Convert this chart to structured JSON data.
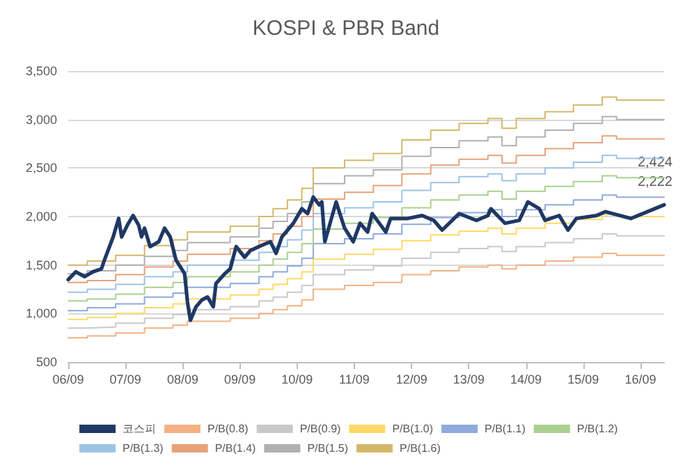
{
  "chart_data": {
    "type": "step",
    "title": "KOSPI & PBR Band",
    "x": [
      "2006-09-01",
      "2007-01-01",
      "2007-07-01",
      "2008-01-01",
      "2008-07-01",
      "2008-10-01",
      "2009-01-01",
      "2009-07-01",
      "2010-01-01",
      "2010-04-01",
      "2010-07-01",
      "2010-10-01",
      "2010-12-13",
      "2011-04-01",
      "2011-07-01",
      "2012-01-01",
      "2012-07-01",
      "2013-01-01",
      "2013-07-01",
      "2014-01-01",
      "2014-04-01",
      "2014-07-01",
      "2015-01-01",
      "2015-07-01",
      "2016-01-01",
      "2016-04-01",
      "2017-01-30"
    ],
    "series": [
      {
        "name": "코스피",
        "type": "line",
        "color": "#1f3864",
        "x": [
          "2006-09-01",
          "2006-10-20",
          "2006-12-15",
          "2007-02-05",
          "2007-04-01",
          "2007-04-20",
          "2007-06-15",
          "2007-07-20",
          "2007-08-08",
          "2007-09-13",
          "2007-10-20",
          "2007-11-25",
          "2007-12-13",
          "2008-01-01",
          "2008-02-06",
          "2008-04-01",
          "2008-05-08",
          "2008-06-13",
          "2008-07-20",
          "2008-08-25",
          "2008-09-13",
          "2008-10-01",
          "2008-10-20",
          "2008-11-25",
          "2009-01-01",
          "2009-02-06",
          "2009-03-15",
          "2009-04-01",
          "2009-05-27",
          "2009-07-01",
          "2009-08-08",
          "2009-10-01",
          "2009-11-07",
          "2010-01-01",
          "2010-03-15",
          "2010-04-20",
          "2010-05-27",
          "2010-08-08",
          "2010-10-01",
          "2010-11-07",
          "2010-12-13",
          "2011-01-20",
          "2011-02-06",
          "2011-02-25",
          "2011-05-08",
          "2011-07-01",
          "2011-08-25",
          "2011-10-08",
          "2011-11-25",
          "2011-12-24",
          "2012-03-20",
          "2012-04-20",
          "2012-08-08",
          "2012-11-07",
          "2013-01-20",
          "2013-03-15",
          "2013-07-01",
          "2013-10-20",
          "2014-01-01",
          "2014-01-20",
          "2014-04-20",
          "2014-07-20",
          "2014-09-13",
          "2014-11-25",
          "2015-01-01",
          "2015-04-01",
          "2015-05-27",
          "2015-07-20",
          "2015-11-25",
          "2016-01-20",
          "2016-07-01",
          "2017-01-30"
        ],
        "values": [
          1350,
          1430,
          1380,
          1430,
          1460,
          1550,
          1790,
          1980,
          1790,
          1910,
          2010,
          1910,
          1790,
          1880,
          1690,
          1740,
          1880,
          1790,
          1550,
          1460,
          1410,
          1120,
          930,
          1070,
          1140,
          1170,
          1070,
          1310,
          1410,
          1460,
          1690,
          1580,
          1650,
          1690,
          1740,
          1620,
          1790,
          1930,
          2080,
          2030,
          2200,
          2120,
          2150,
          1740,
          2150,
          1880,
          1740,
          1930,
          1840,
          2030,
          1840,
          1980,
          1980,
          2010,
          1960,
          1860,
          2030,
          1960,
          2010,
          2080,
          1930,
          1960,
          2150,
          2080,
          1960,
          2010,
          1860,
          1980,
          2010,
          2050,
          1980,
          2120
        ]
      },
      {
        "name": "P/B(0.8)",
        "color": "#f4b183",
        "values": [
          750,
          770,
          800,
          850,
          880,
          920,
          920,
          950,
          1000,
          1040,
          1080,
          1140,
          1250,
          1250,
          1290,
          1320,
          1400,
          1440,
          1480,
          1500,
          1460,
          1500,
          1540,
          1580,
          1620,
          1600,
          1600
        ]
      },
      {
        "name": "P/B(0.9)",
        "color": "#c9c9c9",
        "values": [
          850,
          860,
          900,
          950,
          990,
          1040,
          1040,
          1070,
          1130,
          1170,
          1220,
          1290,
          1400,
          1400,
          1450,
          1490,
          1570,
          1630,
          1670,
          1690,
          1640,
          1690,
          1730,
          1770,
          1820,
          1800,
          1800
        ]
      },
      {
        "name": "P/B(1.0)",
        "color": "#ffd966",
        "values": [
          940,
          960,
          1000,
          1060,
          1100,
          1150,
          1150,
          1190,
          1250,
          1300,
          1360,
          1430,
          1560,
          1560,
          1610,
          1660,
          1750,
          1810,
          1850,
          1880,
          1820,
          1880,
          1930,
          1970,
          2020,
          2000,
          2000
        ]
      },
      {
        "name": "P/B(1.1)",
        "color": "#8faadc",
        "values": [
          1030,
          1060,
          1100,
          1170,
          1210,
          1270,
          1270,
          1310,
          1380,
          1430,
          1490,
          1570,
          1720,
          1720,
          1770,
          1820,
          1920,
          1990,
          2040,
          2070,
          2000,
          2070,
          2120,
          2170,
          2220,
          2200,
          2200
        ]
      },
      {
        "name": "P/B(1.2)",
        "color": "#a9d18e",
        "values": [
          1130,
          1150,
          1200,
          1270,
          1320,
          1380,
          1380,
          1430,
          1500,
          1560,
          1630,
          1720,
          1870,
          1870,
          1930,
          1990,
          2090,
          2170,
          2220,
          2260,
          2180,
          2260,
          2310,
          2360,
          2420,
          2400,
          2400
        ]
      },
      {
        "name": "P/B(1.3)",
        "color": "#9dc3e6",
        "values": [
          1220,
          1250,
          1300,
          1380,
          1430,
          1500,
          1500,
          1550,
          1630,
          1690,
          1760,
          1860,
          2030,
          2030,
          2090,
          2150,
          2270,
          2350,
          2410,
          2440,
          2370,
          2440,
          2500,
          2560,
          2630,
          2600,
          2600
        ]
      },
      {
        "name": "P/B(1.4)",
        "color": "#e8a27a",
        "values": [
          1320,
          1340,
          1400,
          1480,
          1540,
          1610,
          1610,
          1670,
          1750,
          1820,
          1900,
          2000,
          2180,
          2180,
          2250,
          2320,
          2440,
          2530,
          2590,
          2630,
          2550,
          2630,
          2700,
          2760,
          2830,
          2800,
          2800
        ]
      },
      {
        "name": "P/B(1.5)",
        "color": "#b0b0b0",
        "values": [
          1410,
          1440,
          1500,
          1590,
          1650,
          1730,
          1730,
          1790,
          1880,
          1950,
          2030,
          2150,
          2340,
          2340,
          2420,
          2480,
          2620,
          2710,
          2780,
          2820,
          2730,
          2820,
          2890,
          2960,
          3030,
          3000,
          3000
        ]
      },
      {
        "name": "P/B(1.6)",
        "color": "#d4b86a",
        "values": [
          1500,
          1540,
          1600,
          1700,
          1760,
          1840,
          1840,
          1900,
          2000,
          2080,
          2170,
          2290,
          2500,
          2500,
          2580,
          2650,
          2790,
          2890,
          2960,
          3010,
          2910,
          3010,
          3080,
          3150,
          3230,
          3200,
          3200
        ]
      }
    ],
    "xlim": [
      "2006-09-01",
      "2017-01-30"
    ],
    "xticks": [
      {
        "value": "2006-09-01",
        "label": "06/09"
      },
      {
        "value": "2007-09-01",
        "label": "07/09"
      },
      {
        "value": "2008-09-01",
        "label": "08/09"
      },
      {
        "value": "2009-09-01",
        "label": "09/09"
      },
      {
        "value": "2010-09-01",
        "label": "10/09"
      },
      {
        "value": "2011-09-01",
        "label": "11/09"
      },
      {
        "value": "2012-09-01",
        "label": "12/09"
      },
      {
        "value": "2013-09-01",
        "label": "13/09"
      },
      {
        "value": "2014-09-01",
        "label": "14/09"
      },
      {
        "value": "2015-09-01",
        "label": "15/09"
      },
      {
        "value": "2016-09-01",
        "label": "16/09"
      }
    ],
    "ylim": [
      500,
      3500
    ],
    "yticks": [
      {
        "value": 500,
        "label": "500"
      },
      {
        "value": 1000,
        "label": "1,000"
      },
      {
        "value": 1500,
        "label": "1,500"
      },
      {
        "value": 2000,
        "label": "2,000"
      },
      {
        "value": 2500,
        "label": "2,500"
      },
      {
        "value": 3000,
        "label": "3,000"
      },
      {
        "value": 3500,
        "label": "3,500"
      }
    ],
    "annotations": [
      {
        "text": "2,424",
        "x": "2017-01-30",
        "y": 2424
      },
      {
        "text": "2,222",
        "x": "2017-01-30",
        "y": 2222
      }
    ],
    "grid": "y",
    "legend": "bottom",
    "marker": "none",
    "line_style": "solid"
  }
}
